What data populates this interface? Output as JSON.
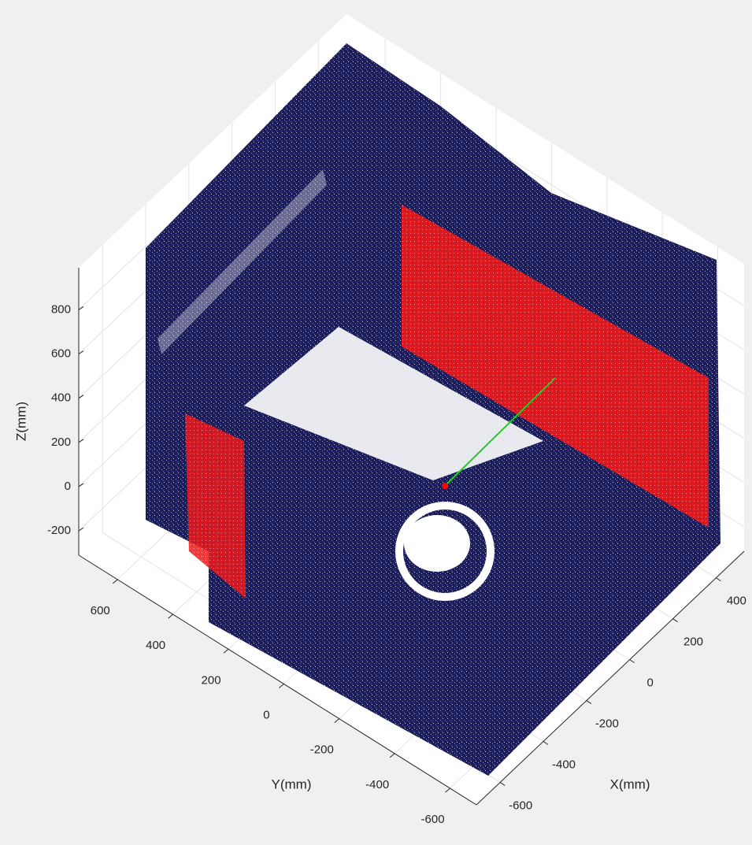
{
  "chart_data": {
    "type": "scatter3d",
    "xlabel": "X(mm)",
    "ylabel": "Y(mm)",
    "zlabel": "Z(mm)",
    "xlim": [
      -710,
      530
    ],
    "ylim": [
      -695,
      740
    ],
    "zlim": [
      -310,
      990
    ],
    "xticks": [
      -600,
      -400,
      -200,
      0,
      200,
      400
    ],
    "yticks": [
      -600,
      -400,
      -200,
      0,
      200,
      400,
      600
    ],
    "zticks": [
      -200,
      0,
      200,
      400,
      600,
      800
    ],
    "grid": true
  }
}
